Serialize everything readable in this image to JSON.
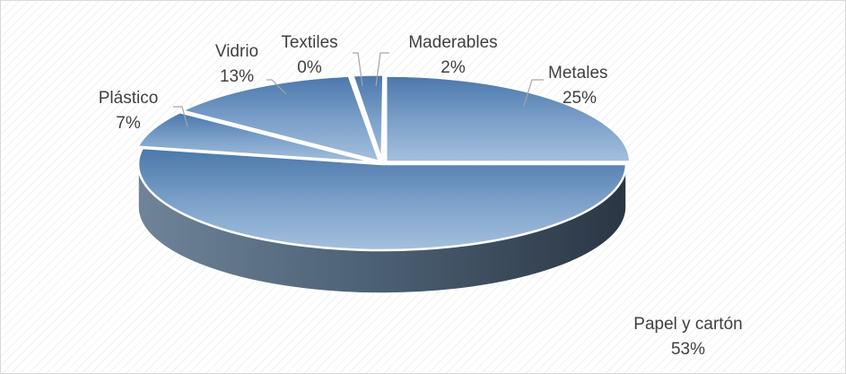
{
  "chart_data": {
    "type": "pie",
    "categories": [
      "Metales",
      "Papel y cartón",
      "Plástico",
      "Vidrio",
      "Textiles",
      "Maderables"
    ],
    "values": [
      25,
      53,
      7,
      13,
      0,
      2
    ],
    "labels": [
      "25%",
      "53%",
      "7%",
      "13%",
      "0%",
      "2%"
    ],
    "colors": {
      "slice_fill": "#7ea1c9",
      "slice_dark": "#4a76a8",
      "side": "#4e6378",
      "label_text": "#404040",
      "leader": "#a6a6a6"
    },
    "legend": "none",
    "style": "3d-exploded"
  }
}
